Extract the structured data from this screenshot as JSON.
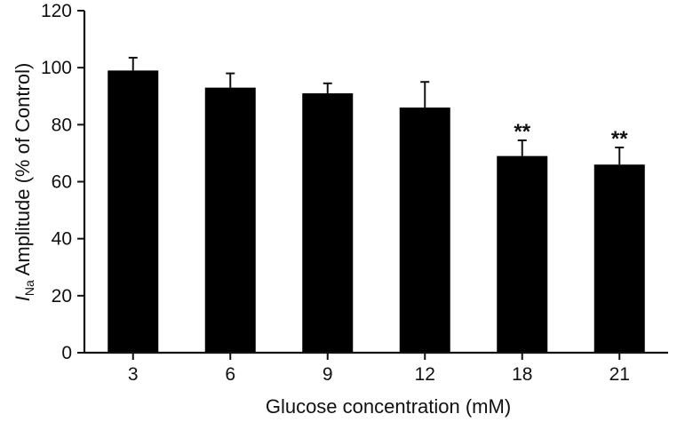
{
  "chart_data": {
    "type": "bar",
    "categories": [
      "3",
      "6",
      "9",
      "12",
      "18",
      "21"
    ],
    "values": [
      99,
      93,
      91,
      86,
      69,
      66
    ],
    "errors": [
      4.5,
      5,
      3.5,
      9,
      5.5,
      6
    ],
    "annotations": [
      "",
      "",
      "",
      "",
      "**",
      "**"
    ],
    "xlabel": "Glucose concentration (mM)",
    "ylabel": {
      "symbol": "I",
      "subscript": "Na",
      "text": " Amplitude (% of Control)"
    },
    "ylim": [
      0,
      120
    ],
    "yticks": [
      0,
      20,
      40,
      60,
      80,
      100,
      120
    ],
    "bar_color": "#000000",
    "grid": false,
    "legend": "none"
  }
}
